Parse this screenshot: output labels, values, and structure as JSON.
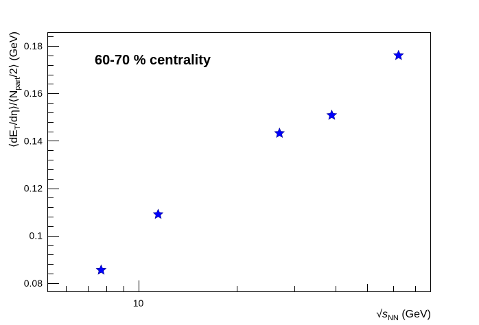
{
  "chart_data": {
    "type": "scatter",
    "annotation": "60-70 % centrality",
    "xlabel": {
      "prefix": "√",
      "main": "s",
      "subscript": "NN",
      "suffix": " (GeV)"
    },
    "ylabel": {
      "p1": "⟨dE",
      "sub1": "T",
      "p2": "/dη⟩/⟨N",
      "sub2": "part",
      "p3": "/2⟩ (GeV)"
    },
    "x_scale": "log",
    "xlim": [
      5.3,
      78
    ],
    "ylim": [
      0.0765,
      0.1855
    ],
    "x_tick_labels": [
      "10"
    ],
    "y_ticks": [
      0.08,
      0.1,
      0.12,
      0.14,
      0.16,
      0.18
    ],
    "y_tick_labels": [
      "0.08",
      "0.1",
      "0.12",
      "0.14",
      "0.16",
      "0.18"
    ],
    "marker": "star",
    "marker_color": "#0000ff",
    "grid": false,
    "points": [
      {
        "x": 7.7,
        "y": 0.0855
      },
      {
        "x": 11.5,
        "y": 0.109
      },
      {
        "x": 27,
        "y": 0.1432
      },
      {
        "x": 39,
        "y": 0.1508
      },
      {
        "x": 62.4,
        "y": 0.176
      }
    ]
  }
}
